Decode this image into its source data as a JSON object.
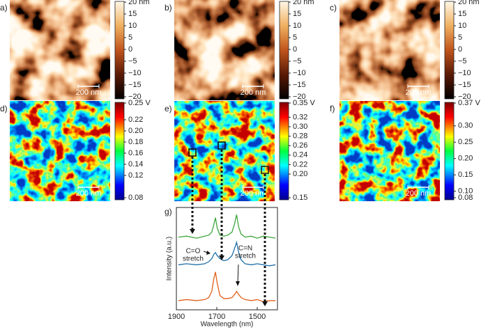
{
  "panels": [
    {
      "label": "a)",
      "scale_bar": "200 nm",
      "colormap": "topo",
      "colorbar": {
        "lim": [
          -20,
          20
        ],
        "ticks": [
          {
            "value": 20,
            "label": "20 nm"
          },
          15,
          10,
          5,
          0,
          {
            "value": -5,
            "label": "−5"
          },
          {
            "value": -10,
            "label": "−10"
          },
          {
            "value": -15,
            "label": "−15"
          },
          {
            "value": -20,
            "label": "−20"
          }
        ]
      }
    },
    {
      "label": "b)",
      "scale_bar": "200 nm",
      "colormap": "topo",
      "colorbar": {
        "lim": [
          -20,
          20
        ],
        "ticks": [
          {
            "value": 20,
            "label": "20 nm"
          },
          15,
          10,
          5,
          0,
          {
            "value": -5,
            "label": "−5"
          },
          {
            "value": -10,
            "label": "−10"
          },
          {
            "value": -15,
            "label": "−15"
          },
          {
            "value": -20,
            "label": "−20"
          }
        ]
      }
    },
    {
      "label": "c)",
      "scale_bar": "200 nm",
      "colormap": "topo",
      "colorbar": {
        "lim": [
          -20,
          20
        ],
        "ticks": [
          {
            "value": 20,
            "label": "20 nm"
          },
          15,
          10,
          5,
          0,
          {
            "value": -5,
            "label": "−5"
          },
          {
            "value": -10,
            "label": "−10"
          },
          {
            "value": -15,
            "label": "−15"
          },
          {
            "value": -20,
            "label": "−20"
          }
        ]
      }
    },
    {
      "label": "d)",
      "scale_bar": "200 nm",
      "colormap": "jet",
      "colorbar": {
        "lim": [
          0.08,
          0.25
        ],
        "ticks": [
          {
            "value": 0.25,
            "label": "0.25 V"
          },
          0.22,
          {
            "value": 0.2,
            "label": "0.20"
          },
          0.18,
          0.16,
          0.14,
          0.12,
          0.08
        ]
      }
    },
    {
      "label": "e)",
      "scale_bar": "200 nm",
      "colormap": "jet",
      "colorbar": {
        "lim": [
          0.15,
          0.35
        ],
        "ticks": [
          {
            "value": 0.35,
            "label": "0.35 V"
          },
          0.32,
          {
            "value": 0.3,
            "label": "0.30"
          },
          0.28,
          0.26,
          0.24,
          0.22,
          {
            "value": 0.2,
            "label": "0.20"
          },
          0.15
        ]
      }
    },
    {
      "label": "f)",
      "scale_bar": "200 nm",
      "colormap": "jet",
      "colorbar": {
        "lim": [
          0.08,
          0.37
        ],
        "ticks": [
          {
            "value": 0.37,
            "label": "0.37 V"
          },
          {
            "value": 0.3,
            "label": "0.30"
          },
          0.25,
          {
            "value": 0.2,
            "label": "0.20"
          },
          0.15,
          {
            "value": 0.1,
            "label": "0.10"
          },
          0.08
        ]
      }
    }
  ],
  "chart_data": {
    "type": "line",
    "label": "g)",
    "xlabel": "Wavelength (nm)",
    "ylabel": "Intensity (a.u.)",
    "xlim": [
      1900,
      1400
    ],
    "xticks": [
      1900,
      1700,
      1500
    ],
    "ylim": [
      0,
      10
    ],
    "x": [
      1890,
      1850,
      1800,
      1760,
      1740,
      1725,
      1715,
      1707,
      1698,
      1685,
      1665,
      1645,
      1625,
      1612,
      1602,
      1592,
      1580,
      1560,
      1530,
      1500,
      1470,
      1440,
      1410
    ],
    "series": [
      {
        "color": "#3ca63c",
        "values": [
          7.1,
          7.2,
          7.0,
          7.2,
          7.3,
          7.6,
          8.3,
          9.0,
          8.0,
          7.3,
          7.2,
          7.3,
          7.6,
          8.4,
          9.3,
          8.1,
          7.4,
          7.1,
          7.2,
          7.0,
          7.2,
          7.1,
          7.0
        ]
      },
      {
        "color": "#1f6fa8",
        "values": [
          4.4,
          4.5,
          4.4,
          4.5,
          4.7,
          5.0,
          5.4,
          5.6,
          5.3,
          5.0,
          4.8,
          4.9,
          5.3,
          6.0,
          6.6,
          5.6,
          4.9,
          4.5,
          4.4,
          4.5,
          4.4,
          4.3,
          4.4
        ]
      },
      {
        "color": "#e0601a",
        "values": [
          0.9,
          1.0,
          0.9,
          1.0,
          1.2,
          1.8,
          3.0,
          3.7,
          2.6,
          1.4,
          1.1,
          1.1,
          1.2,
          1.5,
          1.8,
          1.5,
          1.2,
          1.0,
          0.9,
          1.0,
          0.8,
          0.9,
          0.9
        ]
      }
    ],
    "annotations": [
      {
        "lines": [
          "C=O",
          "stretch"
        ]
      },
      {
        "lines": [
          "C=N",
          "stretch"
        ]
      }
    ]
  }
}
